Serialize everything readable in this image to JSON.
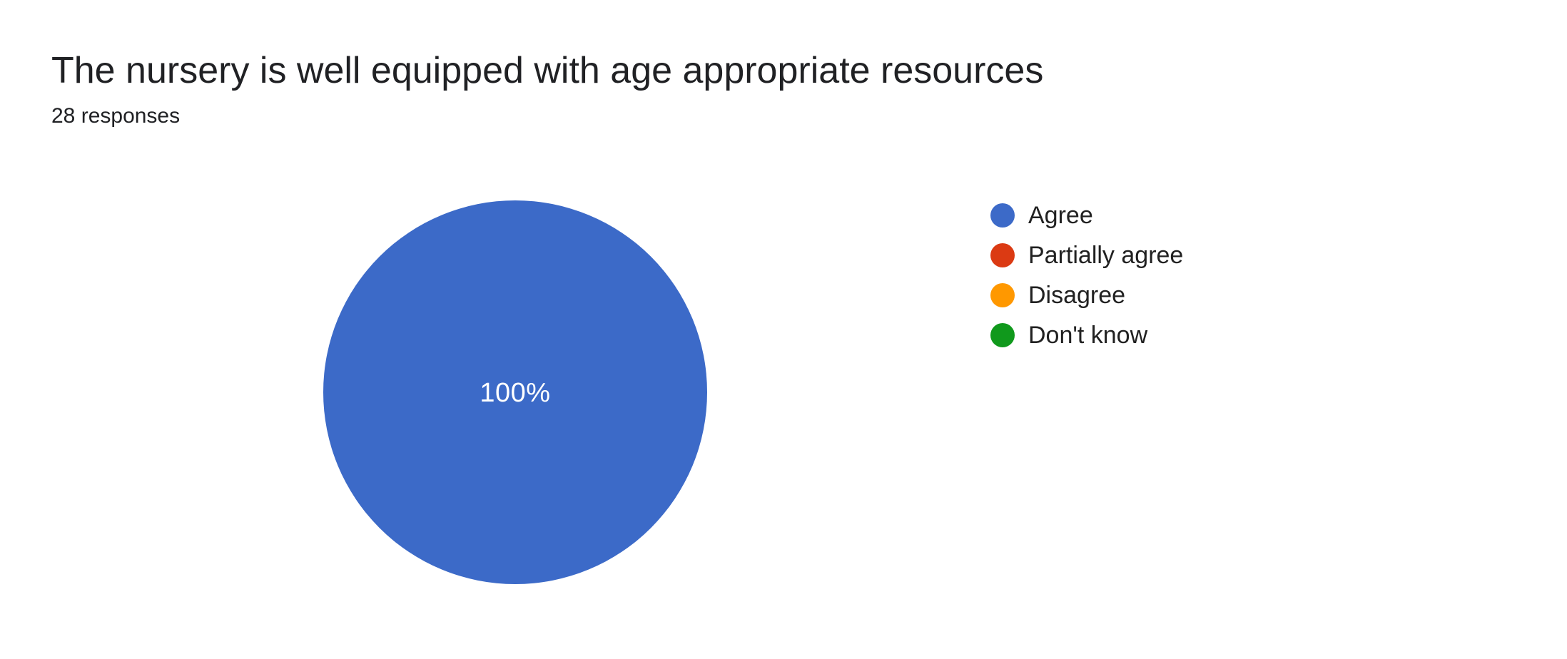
{
  "chart_data": {
    "type": "pie",
    "title": "The nursery is well equipped with age appropriate resources",
    "subtitle": "28 responses",
    "total_responses": 28,
    "categories": [
      "Agree",
      "Partially agree",
      "Disagree",
      "Don't know"
    ],
    "values_percent": [
      100,
      0,
      0,
      0
    ],
    "values_count": [
      28,
      0,
      0,
      0
    ],
    "colors": [
      "#3c6ac8",
      "#db3a13",
      "#ff9800",
      "#10991c"
    ],
    "visible_slice_label": "100%",
    "slice_label_color": "#ffffff",
    "text_color": "#202124",
    "legend_position": "right",
    "background": "#ffffff"
  }
}
